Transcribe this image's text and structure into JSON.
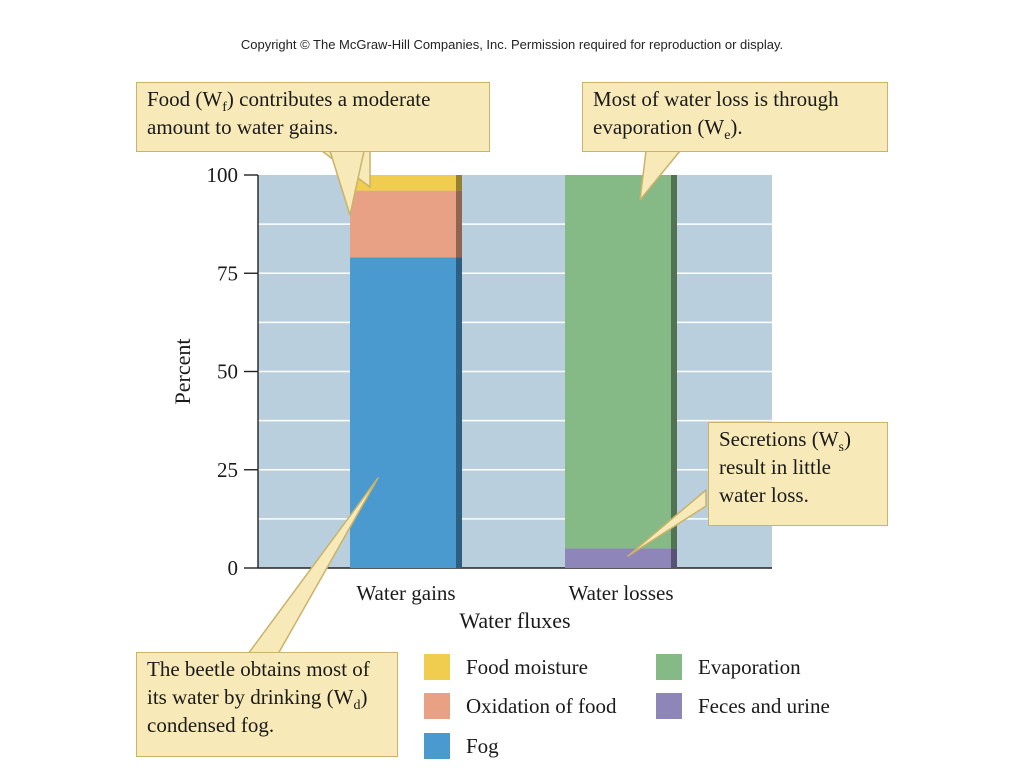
{
  "copyright": "Copyright © The McGraw-Hill Companies, Inc. Permission required for reproduction or display.",
  "callouts": {
    "food": {
      "pre": "Food (W",
      "sub": "f",
      "post": ") contributes a moderate amount to water gains."
    },
    "evaporation": {
      "pre": "Most of water loss is through evaporation (W",
      "sub": "e",
      "post": ")."
    },
    "secretions": {
      "pre": "Secretions (W",
      "sub": "s",
      "post": ") result in little water loss."
    },
    "fog": {
      "pre": "The beetle obtains most of its water by drinking (W",
      "sub": "d",
      "post": ") condensed fog."
    }
  },
  "colors": {
    "plot_bg": "#b9cfdd",
    "grid": "#ffffff",
    "food_moisture": "#f0cd4e",
    "oxidation": "#e8a185",
    "fog": "#4a9ad0",
    "evaporation": "#85b985",
    "feces": "#8e86b8"
  },
  "chart_data": {
    "type": "bar",
    "stacked": true,
    "categories": [
      "Water gains",
      "Water losses"
    ],
    "xlabel": "Water fluxes",
    "ylabel": "Percent",
    "ylim": [
      0,
      100
    ],
    "yticks": [
      0,
      25,
      50,
      75,
      100
    ],
    "grid": true,
    "series": [
      {
        "name": "Fog",
        "key": "fog",
        "values": [
          79,
          0
        ]
      },
      {
        "name": "Oxidation of food",
        "key": "oxidation",
        "values": [
          17,
          0
        ]
      },
      {
        "name": "Food moisture",
        "key": "food_moisture",
        "values": [
          4,
          0
        ]
      },
      {
        "name": "Feces and urine",
        "key": "feces",
        "values": [
          0,
          5
        ]
      },
      {
        "name": "Evaporation",
        "key": "evaporation",
        "values": [
          0,
          95
        ]
      }
    ],
    "legend": {
      "placement": "bottom",
      "order": [
        "Food moisture",
        "Oxidation of food",
        "Fog",
        "Evaporation",
        "Feces and urine"
      ]
    }
  }
}
